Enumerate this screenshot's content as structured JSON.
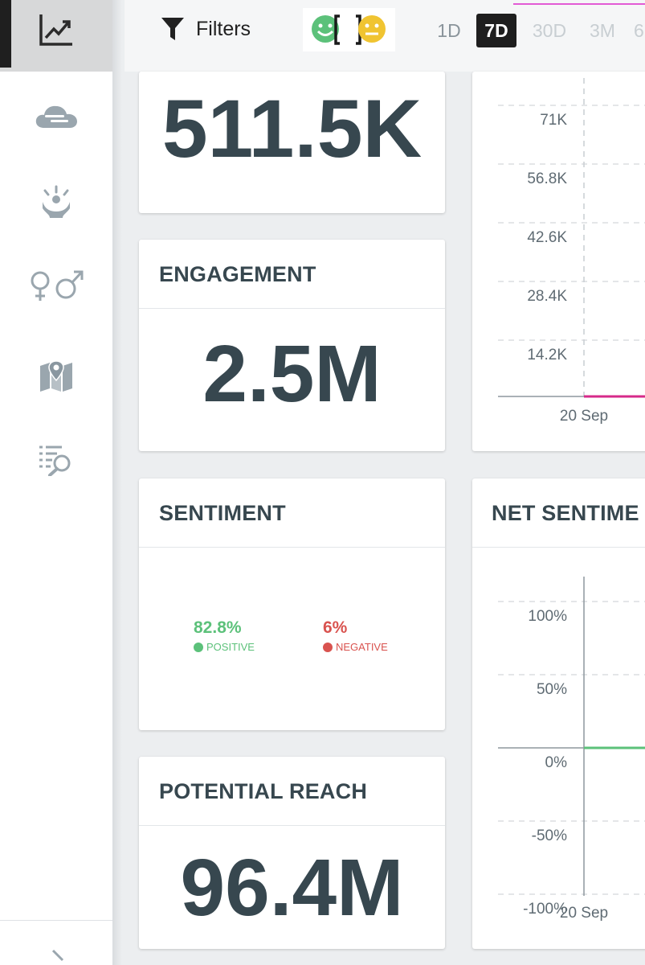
{
  "sidebar": {
    "items": [
      {
        "icon": "trend-chart-icon",
        "active": true
      },
      {
        "icon": "cloud-icon"
      },
      {
        "icon": "influencer-icon"
      },
      {
        "icon": "gender-icon"
      },
      {
        "icon": "map-pin-icon"
      },
      {
        "icon": "list-search-icon"
      }
    ],
    "expand_icon": "chevron-right-icon"
  },
  "topbar": {
    "filters_label": "Filters",
    "filter_icon": "funnel-icon",
    "sentiment_icons": [
      "positive-smiley-icon",
      "neutral-smiley-icon"
    ],
    "ranges": [
      "1D",
      "7D",
      "30D",
      "3M",
      "6"
    ],
    "selected_range": "7D"
  },
  "cards": {
    "mentions": {
      "value": "511.5K"
    },
    "engagement": {
      "title": "ENGAGEMENT",
      "value": "2.5M"
    },
    "sentiment": {
      "title": "SENTIMENT",
      "positive_pct": "82.8%",
      "positive_label": "POSITIVE",
      "negative_pct": "6%",
      "negative_label": "NEGATIVE"
    },
    "potential_reach": {
      "title": "POTENTIAL REACH",
      "value": "96.4M"
    },
    "net_sentiment": {
      "title": "NET SENTIME"
    }
  },
  "colors": {
    "positive": "#5cc17a",
    "negative": "#d9534f",
    "mentions_line": "#d62a8a",
    "net_line": "#5cc17a"
  },
  "chart_data": [
    {
      "type": "line",
      "title": "",
      "y_ticks": [
        "71K",
        "56.8K",
        "42.6K",
        "28.4K",
        "14.2K"
      ],
      "x_ticks": [
        "20 Sep"
      ],
      "ylim": [
        0,
        71000
      ],
      "series": [
        {
          "values": [
            0,
            0
          ]
        }
      ]
    },
    {
      "type": "line",
      "title": "NET SENTIME",
      "y_ticks": [
        "100%",
        "50%",
        "0%",
        "-50%",
        "-100%"
      ],
      "x_ticks": [
        "20 Sep"
      ],
      "ylim": [
        -100,
        100
      ],
      "series": [
        {
          "values": [
            0,
            0
          ]
        }
      ]
    }
  ]
}
